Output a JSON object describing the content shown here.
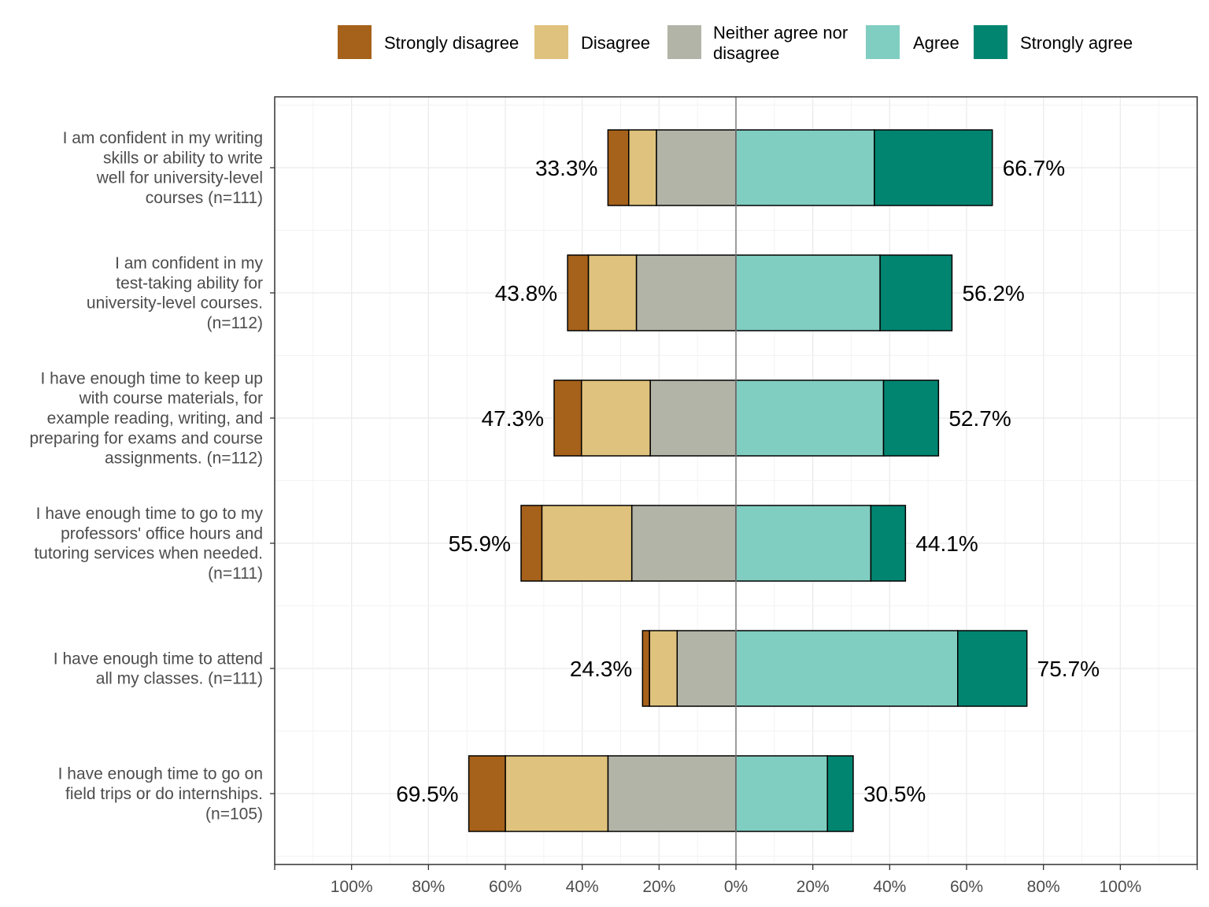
{
  "chart_data": {
    "type": "bar",
    "orientation": "horizontal",
    "stacked": "diverging",
    "legend_position": "top",
    "grid": true,
    "xlim": [
      -120,
      120
    ],
    "x_ticks": [
      -100,
      -80,
      -60,
      -40,
      -20,
      0,
      20,
      40,
      60,
      80,
      100
    ],
    "x_tick_labels": [
      "100%",
      "80%",
      "60%",
      "40%",
      "20%",
      "0%",
      "20%",
      "40%",
      "60%",
      "80%",
      "100%"
    ],
    "categories": [
      "I am confident in my writing skills or ability to write well for university-level courses (n=111)",
      "I am confident in my test-taking ability for university-level courses. (n=112)",
      "I have enough time to keep up with course materials, for example reading, writing, and preparing for exams and course assignments. (n=112)",
      "I have enough time to go to my professors' office hours and tutoring services when needed. (n=111)",
      "I have enough time to attend all my classes. (n=111)",
      "I have enough time to go on field trips or do internships. (n=105)"
    ],
    "category_lines": [
      [
        "I am confident in my writing",
        "skills or ability to write",
        "well for university-level",
        "courses (n=111)"
      ],
      [
        "I am confident in my",
        "test-taking ability for",
        "university-level courses.",
        "(n=112)"
      ],
      [
        "I have enough time to keep up",
        "with course materials, for",
        "example reading, writing, and",
        "preparing for exams and course",
        "assignments. (n=112)"
      ],
      [
        "I have enough time to go to my",
        "professors' office hours and",
        "tutoring services when needed.",
        "(n=111)"
      ],
      [
        "I have enough time to attend",
        "all my classes. (n=111)"
      ],
      [
        "I have enough time to go on",
        "field trips or do internships.",
        "(n=105)"
      ]
    ],
    "series": [
      {
        "name": "Strongly disagree",
        "color": "#a6611a",
        "side": "negative",
        "values": [
          5.4,
          5.4,
          7.1,
          5.4,
          1.8,
          9.5
        ]
      },
      {
        "name": "Disagree",
        "color": "#dfc27d",
        "side": "negative",
        "values": [
          7.2,
          12.5,
          17.9,
          23.4,
          7.2,
          26.7
        ]
      },
      {
        "name": "Neither agree nor disagree",
        "color": "#b2b4a7",
        "side": "negative",
        "values": [
          20.7,
          25.9,
          22.3,
          27.1,
          15.3,
          33.3
        ]
      },
      {
        "name": "Agree",
        "color": "#80cdc1",
        "side": "positive",
        "values": [
          36.0,
          37.5,
          38.4,
          35.1,
          57.7,
          23.8
        ]
      },
      {
        "name": "Strongly agree",
        "color": "#018571",
        "side": "positive",
        "values": [
          30.7,
          18.7,
          14.3,
          9.0,
          18.0,
          6.7
        ]
      }
    ],
    "legend_lines": [
      [
        "Strongly disagree"
      ],
      [
        "Disagree"
      ],
      [
        "Neither agree nor",
        "disagree"
      ],
      [
        "Agree"
      ],
      [
        "Strongly agree"
      ]
    ],
    "totals_negative": [
      "33.3%",
      "43.8%",
      "47.3%",
      "55.9%",
      "24.3%",
      "69.5%"
    ],
    "totals_positive": [
      "66.7%",
      "56.2%",
      "52.7%",
      "44.1%",
      "75.7%",
      "30.5%"
    ]
  }
}
